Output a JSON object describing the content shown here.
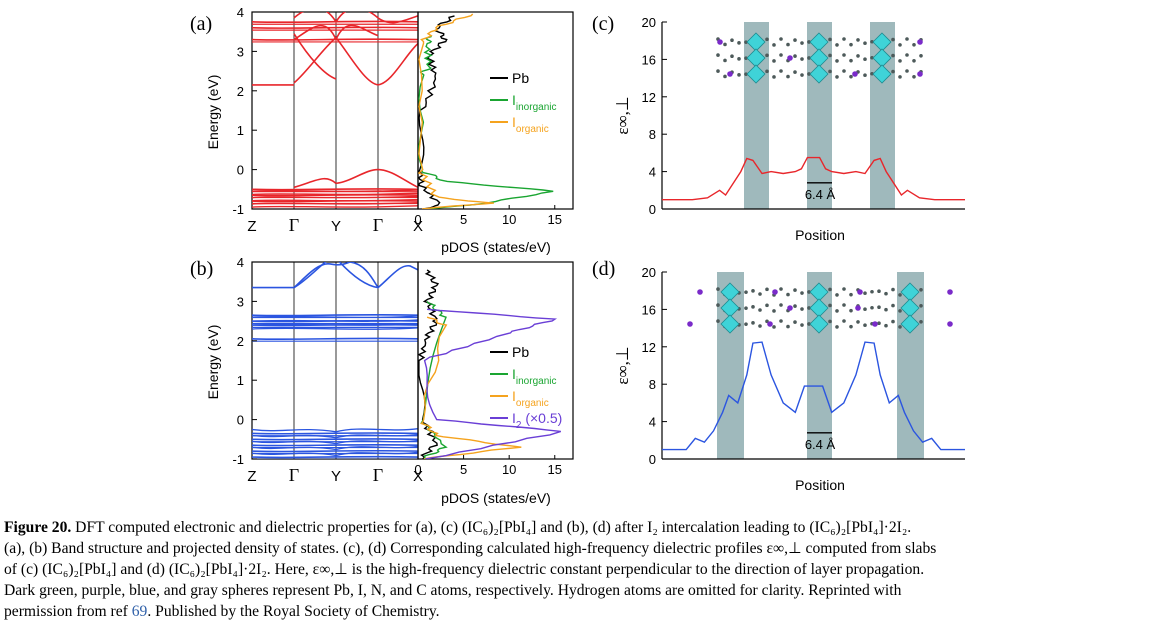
{
  "panels": {
    "a": {
      "label": "(a)",
      "ylabel": "Energy (eV)",
      "yticks": [
        "4",
        "3",
        "2",
        "1",
        "0",
        "-1"
      ],
      "kpoints": [
        "Z",
        "Γ",
        "Y",
        "Γ",
        "X"
      ],
      "pdos_xlabel": "pDOS (states/eV)",
      "pdos_xticks": [
        "0",
        "5",
        "10",
        "15"
      ],
      "legend": [
        {
          "main": "Pb",
          "sub": "",
          "color": "#000000"
        },
        {
          "main": "I",
          "sub": "inorganic",
          "color": "#1aa531"
        },
        {
          "main": "I",
          "sub": "organic",
          "color": "#f5a31e"
        }
      ]
    },
    "b": {
      "label": "(b)",
      "ylabel": "Energy (eV)",
      "yticks": [
        "4",
        "3",
        "2",
        "1",
        "0",
        "-1"
      ],
      "kpoints": [
        "Z",
        "Γ",
        "Y",
        "Γ",
        "X"
      ],
      "pdos_xlabel": "pDOS (states/eV)",
      "pdos_xticks": [
        "0",
        "5",
        "10",
        "15"
      ],
      "legend": [
        {
          "main": "Pb",
          "sub": "",
          "extra": "",
          "color": "#000000"
        },
        {
          "main": "I",
          "sub": "inorganic",
          "extra": "",
          "color": "#1aa531"
        },
        {
          "main": "I",
          "sub": "organic",
          "extra": "",
          "color": "#f5a31e"
        },
        {
          "main": "I",
          "sub": "2",
          "extra": " (×0.5)",
          "color": "#6a3fd6"
        }
      ]
    },
    "c": {
      "label": "(c)",
      "ylabel": "ε∞,⊥",
      "xlabel": "Position",
      "yticks": [
        "20",
        "16",
        "12",
        "8",
        "4",
        "0"
      ],
      "scale_label": "6.4 Å"
    },
    "d": {
      "label": "(d)",
      "ylabel": "ε∞,⊥",
      "xlabel": "Position",
      "yticks": [
        "20",
        "16",
        "12",
        "8",
        "4",
        "0"
      ],
      "scale_label": "6.4 Å"
    }
  },
  "colors": {
    "band_a": "#e8262b",
    "band_b": "#2b55e0",
    "dielectric_c": "#e8262b",
    "dielectric_d": "#2b55e0",
    "column": "#7fa2a6",
    "octahedron": "#3fd3d8",
    "iodine": "#7a2bc9"
  },
  "chart_data": [
    {
      "type": "line",
      "panel": "a",
      "title": "Band structure",
      "xlabel": "",
      "ylabel": "Energy (eV)",
      "categories": [
        "Z",
        "Γ",
        "Y",
        "Γ",
        "X"
      ],
      "ylim": [
        -1,
        4
      ],
      "flat_levels_eV": [
        3.75,
        3.6,
        3.3,
        -0.5,
        -0.65,
        -0.8
      ],
      "features": {
        "Γ_valence_top": 0.0,
        "Γ_conduction": 2.15,
        "Y_conduction": 3.35
      }
    },
    {
      "type": "line",
      "panel": "a-pdos",
      "xlabel": "pDOS (states/eV)",
      "ylabel": "",
      "xlim": [
        0,
        17
      ],
      "ylim": [
        -1,
        4
      ],
      "series": [
        {
          "name": "Pb",
          "points": [
            [
              0.3,
              -1
            ],
            [
              2.5,
              -0.9
            ],
            [
              0.3,
              -0.4
            ],
            [
              0.2,
              0
            ],
            [
              0.5,
              1.5
            ],
            [
              2,
              2.3
            ],
            [
              1.2,
              2.9
            ],
            [
              3,
              3.3
            ],
            [
              2,
              3.6
            ],
            [
              4,
              3.9
            ]
          ]
        },
        {
          "name": "I inorganic",
          "points": [
            [
              0.5,
              -1
            ],
            [
              6,
              -0.9
            ],
            [
              15,
              -0.55
            ],
            [
              3,
              -0.3
            ],
            [
              0.2,
              0
            ],
            [
              0.3,
              2.4
            ],
            [
              1.2,
              2.6
            ],
            [
              1,
              3.2
            ],
            [
              1.4,
              3.4
            ]
          ]
        },
        {
          "name": "I organic",
          "points": [
            [
              0.3,
              -1
            ],
            [
              8,
              -0.85
            ],
            [
              2,
              -0.7
            ],
            [
              0.2,
              0
            ],
            [
              0.3,
              3.2
            ],
            [
              2,
              3.6
            ],
            [
              6,
              3.95
            ]
          ]
        }
      ]
    },
    {
      "type": "line",
      "panel": "b",
      "title": "Band structure",
      "xlabel": "",
      "ylabel": "Energy (eV)",
      "categories": [
        "Z",
        "Γ",
        "Y",
        "Γ",
        "X"
      ],
      "ylim": [
        -1,
        4
      ],
      "flat_levels_eV": [
        2.65,
        2.5,
        2.4,
        2.05,
        -0.35,
        -0.5,
        -0.65,
        -0.8,
        -0.95
      ],
      "features": {
        "Γ_conduction": 3.35,
        "Y_conduction": 3.95
      }
    },
    {
      "type": "line",
      "panel": "b-pdos",
      "xlabel": "pDOS (states/eV)",
      "ylabel": "",
      "xlim": [
        0,
        17
      ],
      "ylim": [
        -1,
        4
      ],
      "series": [
        {
          "name": "Pb",
          "points": [
            [
              0.3,
              -1
            ],
            [
              2,
              -0.6
            ],
            [
              0.5,
              0
            ],
            [
              0.2,
              1.5
            ],
            [
              1,
              2.1
            ],
            [
              2,
              2.5
            ],
            [
              1,
              3.0
            ],
            [
              2,
              3.4
            ],
            [
              1,
              3.8
            ]
          ]
        },
        {
          "name": "I inorganic",
          "points": [
            [
              0.4,
              -1
            ],
            [
              3,
              -0.7
            ],
            [
              0.3,
              0
            ],
            [
              3,
              2.6
            ],
            [
              1,
              3.0
            ]
          ]
        },
        {
          "name": "I organic",
          "points": [
            [
              0.5,
              -1
            ],
            [
              11,
              -0.7
            ],
            [
              2,
              -0.4
            ],
            [
              0.3,
              0
            ],
            [
              3,
              2.4
            ],
            [
              1,
              2.6
            ]
          ]
        },
        {
          "name": "I2 (×0.5)",
          "points": [
            [
              1,
              -1
            ],
            [
              16,
              -0.3
            ],
            [
              2,
              0
            ],
            [
              0.4,
              1.5
            ],
            [
              10,
              2.2
            ],
            [
              15,
              2.55
            ],
            [
              1,
              2.8
            ]
          ]
        }
      ]
    },
    {
      "type": "line",
      "panel": "c",
      "xlabel": "Position",
      "ylabel": "ε∞,⊥",
      "ylim": [
        0,
        20
      ],
      "series": [
        {
          "name": "",
          "x": [
            0,
            0.1,
            0.15,
            0.19,
            0.21,
            0.26,
            0.28,
            0.3,
            0.33,
            0.36,
            0.4,
            0.44,
            0.46,
            0.48,
            0.5,
            0.52,
            0.54,
            0.56,
            0.6,
            0.64,
            0.67,
            0.7,
            0.72,
            0.74,
            0.79,
            0.81,
            0.85,
            0.9,
            1.0
          ],
          "y": [
            1,
            1,
            1.2,
            2,
            1.5,
            4,
            5.4,
            5.2,
            3.8,
            4,
            3.8,
            4,
            4.3,
            5.5,
            5.5,
            5.5,
            4.3,
            4,
            3.8,
            4,
            3.8,
            5.2,
            5.4,
            4,
            1.5,
            2,
            1.2,
            1,
            1
          ]
        }
      ]
    },
    {
      "type": "line",
      "panel": "d",
      "xlabel": "Position",
      "ylabel": "ε∞,⊥",
      "ylim": [
        0,
        20
      ],
      "series": [
        {
          "name": "",
          "x": [
            0,
            0.08,
            0.11,
            0.14,
            0.17,
            0.2,
            0.22,
            0.25,
            0.28,
            0.3,
            0.33,
            0.36,
            0.4,
            0.44,
            0.47,
            0.5,
            0.53,
            0.56,
            0.6,
            0.64,
            0.67,
            0.7,
            0.72,
            0.75,
            0.78,
            0.8,
            0.83,
            0.86,
            0.89,
            0.92,
            1.0
          ],
          "y": [
            1,
            1,
            2.2,
            1.8,
            3,
            5,
            6.8,
            6,
            9,
            12.4,
            12.5,
            9,
            6,
            5,
            7.8,
            7.8,
            7.8,
            5,
            6,
            9,
            12.5,
            12.4,
            9,
            6,
            6.8,
            5,
            3,
            1.8,
            2.2,
            1,
            1
          ]
        }
      ]
    }
  ],
  "caption": {
    "figure_label": "Figure 20.",
    "line1": " DFT computed electronic and dielectric properties for (a), (c) (IC₆)₂[PbI₄] and (b), (d) after I₂ intercalation leading to (IC₆)₂[PbI₄]·2I₂.",
    "line2": "(a), (b) Band structure and projected density of states. (c), (d) Corresponding calculated high-frequency dielectric profiles ε∞,⊥ computed from slabs",
    "line3": "of (c) (IC₆)₂[PbI₄] and (d) (IC₆)₂[PbI₄]·2I₂. Here, ε∞,⊥ is the high-frequency dielectric constant perpendicular to the direction of layer propagation.",
    "line4": "Dark green, purple, blue, and gray spheres represent Pb, I, N, and C atoms, respectively. Hydrogen atoms are omitted for clarity. Reprinted with",
    "line5a": "permission from ref ",
    "ref": "69",
    "line5b": ". Published by the Royal Society of Chemistry."
  }
}
